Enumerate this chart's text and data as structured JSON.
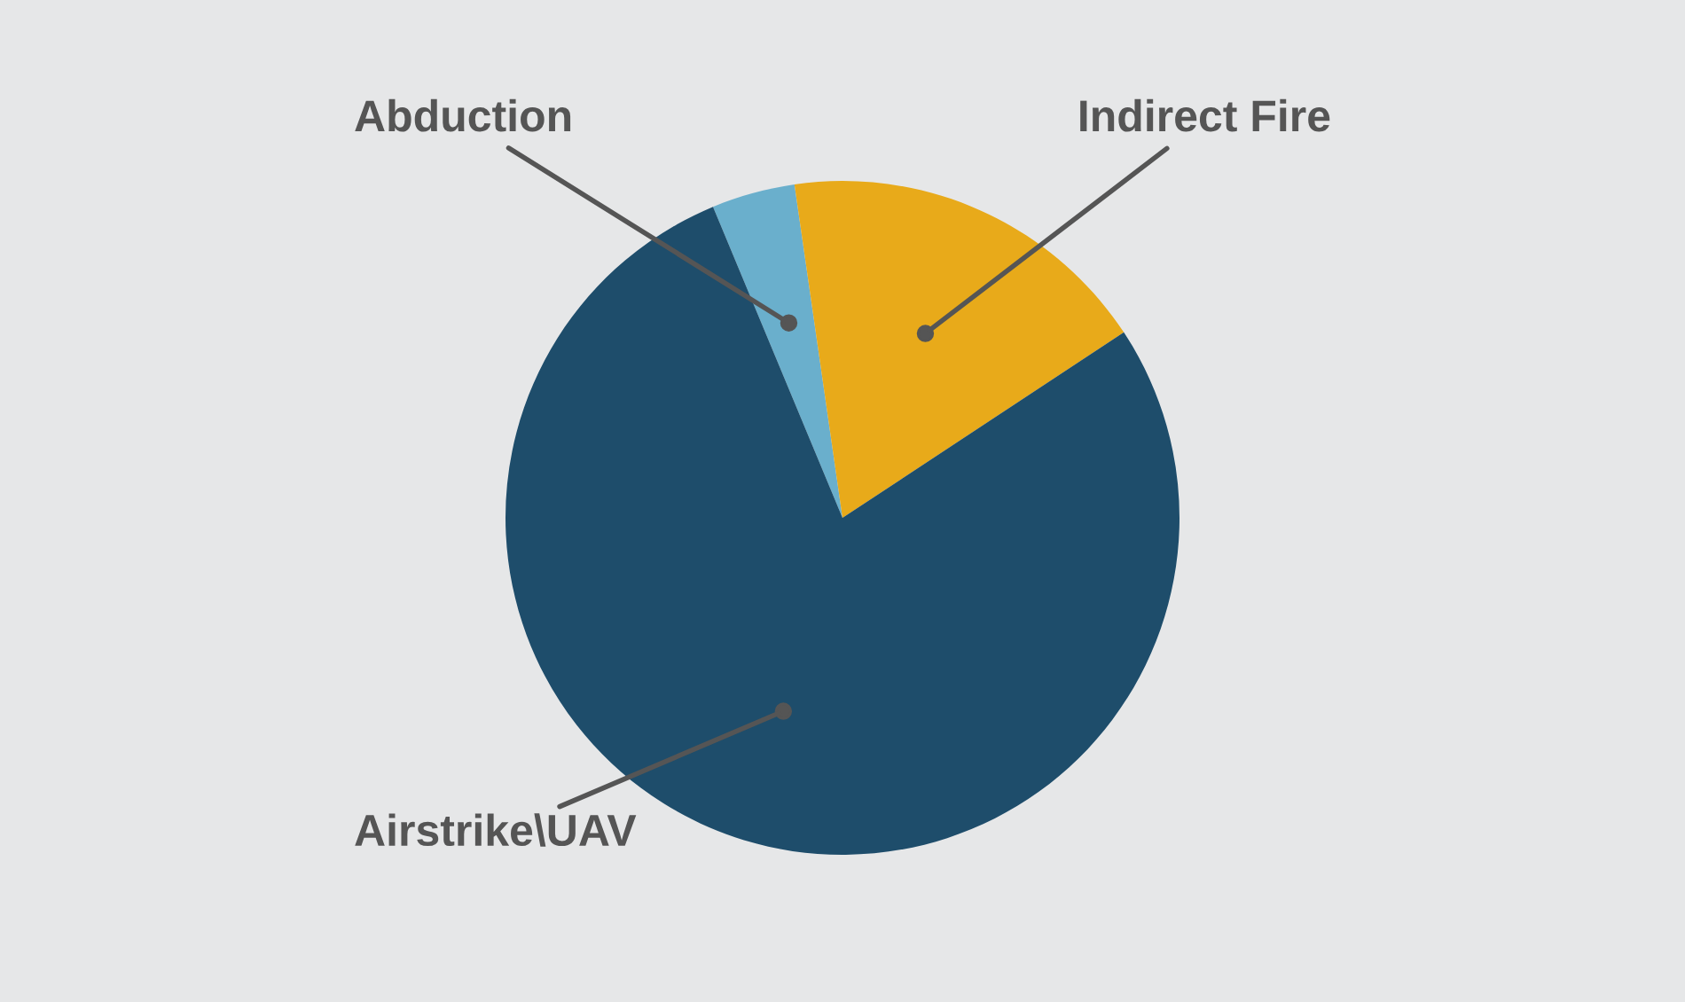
{
  "chart_data": {
    "type": "pie",
    "categories": [
      "Abduction",
      "Indirect Fire",
      "Airstrike\\UAV"
    ],
    "values": [
      4,
      18,
      78
    ],
    "colors": [
      "#6aafcc",
      "#e8aa1a",
      "#1e4d6b"
    ]
  }
}
